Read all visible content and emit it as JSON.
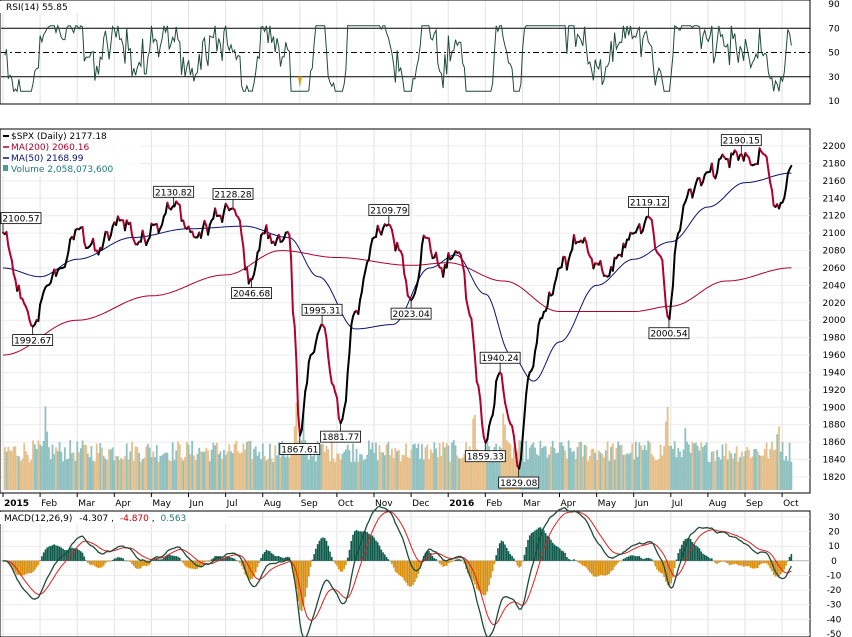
{
  "chart_data": {
    "type": "line",
    "period": {
      "start": "2015-01",
      "end": "2016-09"
    },
    "x_labels": [
      {
        "label": "2015",
        "bold": true
      },
      {
        "label": "Feb"
      },
      {
        "label": "Mar"
      },
      {
        "label": "Apr"
      },
      {
        "label": "May"
      },
      {
        "label": "Jun"
      },
      {
        "label": "Jul"
      },
      {
        "label": "Aug"
      },
      {
        "label": "Sep"
      },
      {
        "label": "Oct"
      },
      {
        "label": "Nov"
      },
      {
        "label": "Dec"
      },
      {
        "label": "2016",
        "bold": true
      },
      {
        "label": "Feb"
      },
      {
        "label": "Mar"
      },
      {
        "label": "Apr"
      },
      {
        "label": "May"
      },
      {
        "label": "Jun"
      },
      {
        "label": "Jul"
      },
      {
        "label": "Aug"
      },
      {
        "label": "Sep"
      },
      {
        "label": "Oct"
      }
    ],
    "rsi": {
      "title": "RSI(14) 55.85",
      "ylim": [
        10,
        90
      ],
      "ticks": [
        90,
        70,
        50,
        30,
        10
      ],
      "levels": [
        70,
        50,
        30
      ],
      "last": 55.85
    },
    "price": {
      "legend": [
        {
          "text": "$SPX (Daily) 2177.18",
          "color": "#000000",
          "bold": true
        },
        {
          "text": "MA(200) 2060.16",
          "color": "#b0002c"
        },
        {
          "text": "MA(50) 2168.99",
          "color": "#0a1470"
        },
        {
          "text": "Volume 2,058,073,600",
          "color": "#1f7a7a"
        }
      ],
      "ylim": [
        1805,
        2215
      ],
      "ticks": [
        2200,
        2180,
        2160,
        2140,
        2120,
        2100,
        2080,
        2060,
        2040,
        2020,
        2000,
        1980,
        1960,
        1940,
        1920,
        1900,
        1880,
        1860,
        1840,
        1820
      ],
      "key_points": [
        {
          "t": 0.0,
          "v": 2100.57
        },
        {
          "t": 0.5,
          "v": 2025
        },
        {
          "t": 0.8,
          "v": 1992.67
        },
        {
          "t": 1.2,
          "v": 2040
        },
        {
          "t": 1.6,
          "v": 2060
        },
        {
          "t": 2.0,
          "v": 2105
        },
        {
          "t": 2.5,
          "v": 2080
        },
        {
          "t": 3.2,
          "v": 2115
        },
        {
          "t": 3.7,
          "v": 2090
        },
        {
          "t": 4.1,
          "v": 2110
        },
        {
          "t": 4.6,
          "v": 2130.82
        },
        {
          "t": 5.2,
          "v": 2095
        },
        {
          "t": 5.8,
          "v": 2120
        },
        {
          "t": 6.2,
          "v": 2128.28
        },
        {
          "t": 6.7,
          "v": 2046.68
        },
        {
          "t": 7.0,
          "v": 2100
        },
        {
          "t": 7.5,
          "v": 2090
        },
        {
          "t": 7.7,
          "v": 2102
        },
        {
          "t": 7.85,
          "v": 1995
        },
        {
          "t": 8.0,
          "v": 1867.61
        },
        {
          "t": 8.3,
          "v": 1960
        },
        {
          "t": 8.6,
          "v": 1995.31
        },
        {
          "t": 8.9,
          "v": 1925
        },
        {
          "t": 9.1,
          "v": 1881.77
        },
        {
          "t": 9.5,
          "v": 2010
        },
        {
          "t": 10.0,
          "v": 2095
        },
        {
          "t": 10.4,
          "v": 2109.79
        },
        {
          "t": 10.7,
          "v": 2080
        },
        {
          "t": 11.0,
          "v": 2023.04
        },
        {
          "t": 11.4,
          "v": 2095
        },
        {
          "t": 11.8,
          "v": 2060
        },
        {
          "t": 12.3,
          "v": 2078
        },
        {
          "t": 12.6,
          "v": 2005
        },
        {
          "t": 12.8,
          "v": 1925
        },
        {
          "t": 13.0,
          "v": 1859.33
        },
        {
          "t": 13.4,
          "v": 1940.24
        },
        {
          "t": 13.7,
          "v": 1880
        },
        {
          "t": 13.9,
          "v": 1829.08
        },
        {
          "t": 14.2,
          "v": 1940
        },
        {
          "t": 14.6,
          "v": 2010
        },
        {
          "t": 15.0,
          "v": 2060
        },
        {
          "t": 15.5,
          "v": 2090
        },
        {
          "t": 16.0,
          "v": 2065
        },
        {
          "t": 16.3,
          "v": 2050
        },
        {
          "t": 16.6,
          "v": 2075
        },
        {
          "t": 17.0,
          "v": 2100
        },
        {
          "t": 17.4,
          "v": 2119.12
        },
        {
          "t": 17.7,
          "v": 2075
        },
        {
          "t": 17.95,
          "v": 2000.54
        },
        {
          "t": 18.2,
          "v": 2100
        },
        {
          "t": 18.5,
          "v": 2150
        },
        {
          "t": 19.0,
          "v": 2170
        },
        {
          "t": 19.5,
          "v": 2185
        },
        {
          "t": 19.9,
          "v": 2190.15
        },
        {
          "t": 20.2,
          "v": 2178
        },
        {
          "t": 20.55,
          "v": 2190
        },
        {
          "t": 20.8,
          "v": 2130
        },
        {
          "t": 21.0,
          "v": 2135
        },
        {
          "t": 21.25,
          "v": 2177.18
        }
      ],
      "ma200": [
        {
          "t": 0.0,
          "v": 1960
        },
        {
          "t": 2.0,
          "v": 2000
        },
        {
          "t": 4.0,
          "v": 2028
        },
        {
          "t": 6.0,
          "v": 2052
        },
        {
          "t": 7.5,
          "v": 2080
        },
        {
          "t": 9.0,
          "v": 2072
        },
        {
          "t": 11.0,
          "v": 2063
        },
        {
          "t": 12.0,
          "v": 2066
        },
        {
          "t": 13.5,
          "v": 2045
        },
        {
          "t": 15.0,
          "v": 2010
        },
        {
          "t": 17.0,
          "v": 2010
        },
        {
          "t": 18.0,
          "v": 2016
        },
        {
          "t": 19.5,
          "v": 2045
        },
        {
          "t": 21.25,
          "v": 2060.16
        }
      ],
      "ma50": [
        {
          "t": 0.0,
          "v": 2060
        },
        {
          "t": 1.0,
          "v": 2050
        },
        {
          "t": 2.0,
          "v": 2070
        },
        {
          "t": 3.5,
          "v": 2095
        },
        {
          "t": 5.0,
          "v": 2105
        },
        {
          "t": 6.5,
          "v": 2108
        },
        {
          "t": 7.7,
          "v": 2095
        },
        {
          "t": 8.5,
          "v": 2050
        },
        {
          "t": 9.5,
          "v": 1990
        },
        {
          "t": 10.5,
          "v": 1995
        },
        {
          "t": 11.5,
          "v": 2060
        },
        {
          "t": 12.2,
          "v": 2075
        },
        {
          "t": 13.0,
          "v": 2030
        },
        {
          "t": 13.7,
          "v": 1960
        },
        {
          "t": 14.3,
          "v": 1930
        },
        {
          "t": 15.0,
          "v": 1975
        },
        {
          "t": 16.0,
          "v": 2040
        },
        {
          "t": 17.0,
          "v": 2070
        },
        {
          "t": 18.0,
          "v": 2090
        },
        {
          "t": 19.0,
          "v": 2130
        },
        {
          "t": 20.0,
          "v": 2158
        },
        {
          "t": 21.25,
          "v": 2168.99
        }
      ],
      "annotations": [
        {
          "label": "2100.57",
          "t": 0.0,
          "v": 2100.57,
          "pos": "above"
        },
        {
          "label": "1992.67",
          "t": 0.8,
          "v": 1992.67,
          "pos": "below"
        },
        {
          "label": "2130.82",
          "t": 4.6,
          "v": 2130.82,
          "pos": "above"
        },
        {
          "label": "2128.28",
          "t": 6.2,
          "v": 2128.28,
          "pos": "above"
        },
        {
          "label": "2046.68",
          "t": 6.7,
          "v": 2046.68,
          "pos": "below"
        },
        {
          "label": "1867.61",
          "t": 8.0,
          "v": 1867.61,
          "pos": "below"
        },
        {
          "label": "1995.31",
          "t": 8.6,
          "v": 1995.31,
          "pos": "above"
        },
        {
          "label": "1881.77",
          "t": 9.1,
          "v": 1881.77,
          "pos": "below"
        },
        {
          "label": "2109.79",
          "t": 10.4,
          "v": 2109.79,
          "pos": "above"
        },
        {
          "label": "2023.04",
          "t": 11.0,
          "v": 2023.04,
          "pos": "below"
        },
        {
          "label": "1859.33",
          "t": 13.0,
          "v": 1859.33,
          "pos": "below"
        },
        {
          "label": "1940.24",
          "t": 13.4,
          "v": 1940.24,
          "pos": "above"
        },
        {
          "label": "1829.08",
          "t": 13.9,
          "v": 1829.08,
          "pos": "below"
        },
        {
          "label": "2119.12",
          "t": 17.4,
          "v": 2119.12,
          "pos": "above"
        },
        {
          "label": "2000.54",
          "t": 17.95,
          "v": 2000.54,
          "pos": "below"
        },
        {
          "label": "2190.15",
          "t": 19.9,
          "v": 2190.15,
          "pos": "above"
        }
      ],
      "volume_spikes": [
        {
          "t": 1.15,
          "rel": 0.9
        },
        {
          "t": 7.9,
          "rel": 1.0
        },
        {
          "t": 8.1,
          "rel": 0.75
        },
        {
          "t": 12.7,
          "rel": 0.95
        },
        {
          "t": 13.5,
          "rel": 0.9
        },
        {
          "t": 17.9,
          "rel": 1.0
        },
        {
          "t": 18.4,
          "rel": 0.55
        },
        {
          "t": 20.9,
          "rel": 0.65
        }
      ]
    },
    "macd": {
      "title": "MACD(12,26,9)",
      "values": [
        "-4.307",
        "-4.870",
        "0.563"
      ],
      "value_colors": [
        "#000000",
        "#c00000",
        "#1f7a7a"
      ],
      "ylim": [
        -50,
        32
      ],
      "ticks": [
        30,
        20,
        10,
        0,
        -10,
        -20,
        -30,
        -40,
        -50
      ]
    },
    "colors": {
      "up": "#000000",
      "down": "#b0002c",
      "ma200": "#b0002c",
      "ma50": "#0a1470",
      "rsi_line": "#1f4b3a",
      "vol_up": "#8fc1c1",
      "vol_down": "#e6bf8a",
      "macd_line": "#1f4b3a",
      "signal_line": "#e02020",
      "hist_pos": "#0d5a4a",
      "hist_neg": "#d9900e"
    }
  }
}
